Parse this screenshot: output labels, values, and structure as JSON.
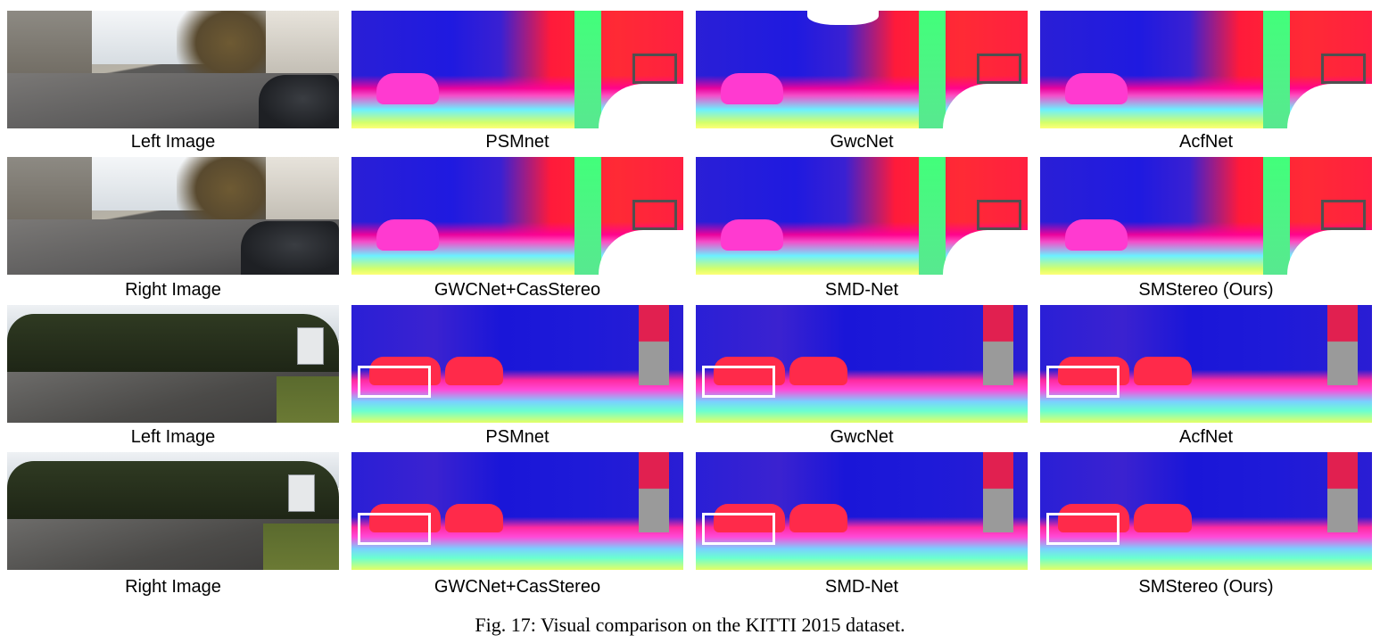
{
  "rows": [
    {
      "labels": [
        "Left Image",
        "PSMnet",
        "GwcNet",
        "AcfNet"
      ]
    },
    {
      "labels": [
        "Right Image",
        "GWCNet+CasStereo",
        "SMD-Net",
        "SMStereo (Ours)"
      ]
    },
    {
      "labels": [
        "Left Image",
        "PSMnet",
        "GwcNet",
        "AcfNet"
      ]
    },
    {
      "labels": [
        "Right Image",
        "GWCNet+CasStereo",
        "SMD-Net",
        "SMStereo (Ours)"
      ]
    }
  ],
  "caption": "Fig. 17: Visual comparison on the KITTI 2015 dataset."
}
